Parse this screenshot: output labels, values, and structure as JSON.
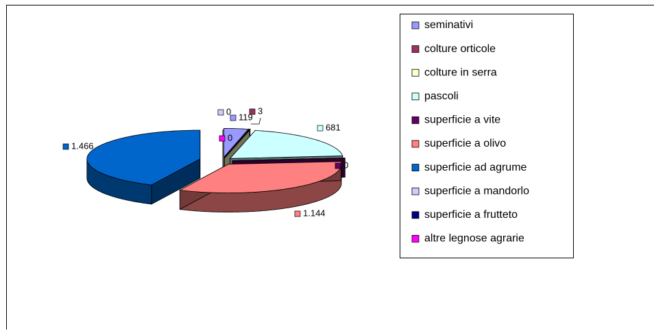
{
  "chart_data": {
    "type": "pie3d",
    "categories": [
      "seminativi",
      "colture orticole",
      "colture in serra",
      "pascoli",
      "superficie a vite",
      "superficie a olivo",
      "superficie ad agrume",
      "superficie a mandorlo",
      "superficie a frutteto",
      "altre legnose agrarie"
    ],
    "values": [
      119,
      3,
      0,
      681,
      0,
      1144,
      1466,
      0,
      0,
      0
    ],
    "value_labels": [
      "119",
      "3",
      null,
      "681",
      "0",
      "1.144",
      "1.466",
      "0",
      null,
      "0"
    ],
    "colors": [
      "#9999ff",
      "#993366",
      "#ffffcc",
      "#ccffff",
      "#660066",
      "#ff8080",
      "#0066cc",
      "#ccccff",
      "#000080",
      "#ff00ff"
    ],
    "legend": "right"
  }
}
